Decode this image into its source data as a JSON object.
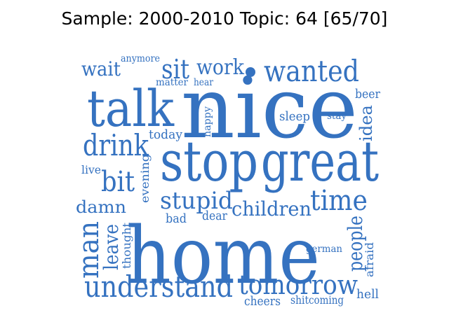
{
  "title": "Sample: 2000-2010 Topic: 64 [65/70]",
  "color": "#3572c0",
  "words": [
    {
      "text": "nice",
      "key": "nice"
    },
    {
      "text": "home",
      "key": "home"
    },
    {
      "text": "stop",
      "key": "stop"
    },
    {
      "text": "great",
      "key": "great"
    },
    {
      "text": "talk",
      "key": "talk"
    },
    {
      "text": "wanted",
      "key": "wanted"
    },
    {
      "text": "understand",
      "key": "understand"
    },
    {
      "text": "tomorrow",
      "key": "tomorrow"
    },
    {
      "text": "drink",
      "key": "drink"
    },
    {
      "text": "time",
      "key": "time"
    },
    {
      "text": "stupid",
      "key": "stupid"
    },
    {
      "text": "children",
      "key": "children"
    },
    {
      "text": "man",
      "key": "man"
    },
    {
      "text": "bit",
      "key": "bit"
    },
    {
      "text": "sit",
      "key": "sit"
    },
    {
      "text": "work",
      "key": "work"
    },
    {
      "text": "wait",
      "key": "wait"
    },
    {
      "text": "people",
      "key": "people"
    },
    {
      "text": "leave",
      "key": "leave"
    },
    {
      "text": "damn",
      "key": "damn"
    },
    {
      "text": "idea",
      "key": "idea"
    },
    {
      "text": "beer",
      "key": "beer"
    },
    {
      "text": "sleep",
      "key": "sleep"
    },
    {
      "text": "today",
      "key": "today"
    },
    {
      "text": "hell",
      "key": "hell"
    },
    {
      "text": "cheers",
      "key": "cheers"
    },
    {
      "text": "coming",
      "key": "coming"
    },
    {
      "text": "shit",
      "key": "shit"
    },
    {
      "text": "dear",
      "key": "dear"
    },
    {
      "text": "bad",
      "key": "bad"
    },
    {
      "text": "live",
      "key": "live"
    },
    {
      "text": "evening",
      "key": "evening"
    },
    {
      "text": "thought",
      "key": "thought"
    },
    {
      "text": "afraid",
      "key": "afraid"
    },
    {
      "text": "german",
      "key": "german"
    },
    {
      "text": "anymore",
      "key": "anymore"
    },
    {
      "text": "matter",
      "key": "matter"
    },
    {
      "text": "hear",
      "key": "hear"
    },
    {
      "text": "happy",
      "key": "happy"
    },
    {
      "text": "stay",
      "key": "stay"
    },
    {
      "text": "dot",
      "key": "dot"
    }
  ]
}
